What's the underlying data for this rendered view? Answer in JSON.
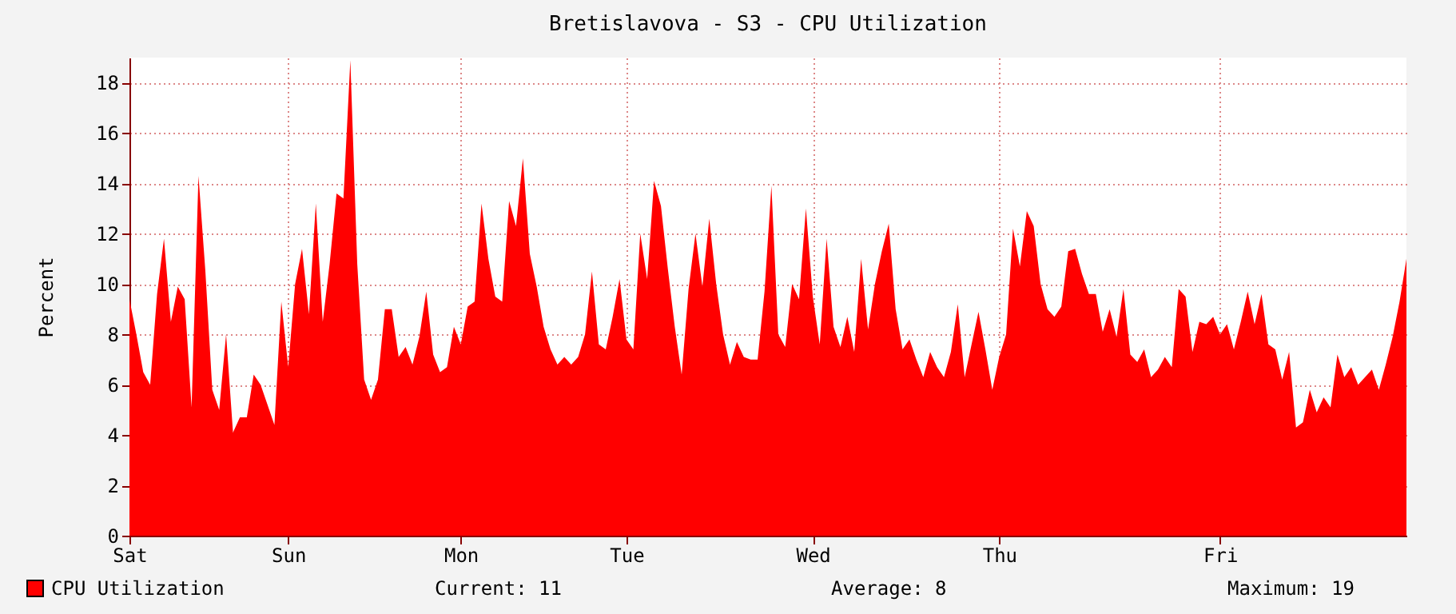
{
  "chart_data": {
    "type": "area",
    "title": "Bretislavova - S3 - CPU Utilization",
    "ylabel": "Percent",
    "categories": [
      "Sat",
      null,
      null,
      null,
      null,
      null,
      null,
      null,
      null,
      null,
      null,
      null,
      null,
      null,
      null,
      null,
      null,
      null,
      null,
      null,
      null,
      null,
      null,
      "Sun",
      null,
      null,
      null,
      null,
      null,
      null,
      null,
      null,
      null,
      null,
      null,
      null,
      null,
      null,
      null,
      null,
      null,
      null,
      null,
      null,
      null,
      null,
      null,
      null,
      "Mon",
      null,
      null,
      null,
      null,
      null,
      null,
      null,
      null,
      null,
      null,
      null,
      null,
      null,
      null,
      null,
      null,
      null,
      null,
      null,
      null,
      null,
      null,
      null,
      "Tue",
      null,
      null,
      null,
      null,
      null,
      null,
      null,
      null,
      null,
      null,
      null,
      null,
      null,
      null,
      null,
      null,
      null,
      null,
      null,
      null,
      null,
      null,
      null,
      null,
      null,
      null,
      "Wed",
      null,
      null,
      null,
      null,
      null,
      null,
      null,
      null,
      null,
      null,
      null,
      null,
      null,
      null,
      null,
      null,
      null,
      null,
      null,
      null,
      null,
      null,
      null,
      null,
      null,
      null,
      "Thu",
      null,
      null,
      null,
      null,
      null,
      null,
      null,
      null,
      null,
      null,
      null,
      null,
      null,
      null,
      null,
      null,
      null,
      null,
      null,
      null,
      null,
      null,
      null,
      null,
      null,
      null,
      null,
      null,
      null,
      null,
      null,
      "Fri",
      null,
      null,
      null,
      null,
      null,
      null,
      null,
      null,
      null,
      null,
      null,
      null,
      null,
      null,
      null,
      null,
      null,
      null,
      null,
      null,
      null,
      null,
      null,
      null,
      null,
      null,
      null
    ],
    "series": [
      {
        "name": "CPU Utilization",
        "color": "#ff0000",
        "values": [
          9.4,
          8.0,
          6.5,
          6.0,
          9.6,
          11.8,
          8.5,
          9.9,
          9.4,
          5.1,
          14.3,
          10.5,
          5.8,
          5.0,
          8.0,
          4.1,
          4.7,
          4.7,
          6.4,
          6.0,
          5.2,
          4.4,
          9.3,
          6.7,
          10.0,
          11.4,
          8.8,
          13.2,
          8.5,
          10.8,
          13.6,
          13.4,
          18.9,
          10.8,
          6.2,
          5.4,
          6.2,
          9.0,
          9.0,
          7.1,
          7.5,
          6.8,
          7.9,
          9.7,
          7.2,
          6.5,
          6.7,
          8.3,
          7.6,
          9.1,
          9.3,
          13.2,
          11.0,
          9.5,
          9.3,
          13.3,
          12.3,
          15.0,
          11.2,
          9.9,
          8.3,
          7.4,
          6.8,
          7.1,
          6.8,
          7.1,
          8.0,
          10.5,
          7.6,
          7.4,
          8.7,
          10.2,
          7.8,
          7.4,
          12.0,
          10.2,
          14.1,
          13.1,
          10.6,
          8.3,
          6.4,
          9.8,
          12.0,
          9.9,
          12.6,
          10.0,
          8.0,
          6.8,
          7.7,
          7.1,
          7.0,
          7.0,
          9.7,
          13.9,
          8.0,
          7.5,
          10.0,
          9.4,
          13.0,
          9.5,
          7.6,
          11.8,
          8.3,
          7.5,
          8.7,
          7.3,
          11.0,
          8.2,
          10.0,
          11.3,
          12.4,
          9.0,
          7.4,
          7.8,
          7.0,
          6.3,
          7.3,
          6.7,
          6.3,
          7.3,
          9.2,
          6.3,
          7.6,
          8.9,
          7.4,
          5.8,
          7.1,
          8.0,
          12.2,
          10.7,
          12.9,
          12.3,
          10.0,
          9.0,
          8.7,
          9.1,
          11.3,
          11.4,
          10.4,
          9.6,
          9.6,
          8.1,
          9.0,
          7.9,
          9.8,
          7.2,
          6.9,
          7.4,
          6.3,
          6.6,
          7.1,
          6.7,
          9.8,
          9.5,
          7.3,
          8.5,
          8.4,
          8.7,
          8.0,
          8.4,
          7.4,
          8.5,
          9.7,
          8.4,
          9.6,
          7.6,
          7.4,
          6.2,
          7.3,
          4.3,
          4.5,
          5.8,
          4.9,
          5.5,
          5.1,
          7.2,
          6.3,
          6.7,
          6.0,
          6.3,
          6.6,
          5.8,
          6.8,
          7.9,
          9.3,
          11.0
        ]
      }
    ],
    "ylim": [
      0,
      19
    ],
    "yticks": [
      0,
      2,
      4,
      6,
      8,
      10,
      12,
      14,
      16,
      18
    ],
    "grid": true,
    "legend": "bottom left",
    "annotations": [
      "Current: 11",
      "Average: 8",
      "Maximum: 19"
    ]
  }
}
